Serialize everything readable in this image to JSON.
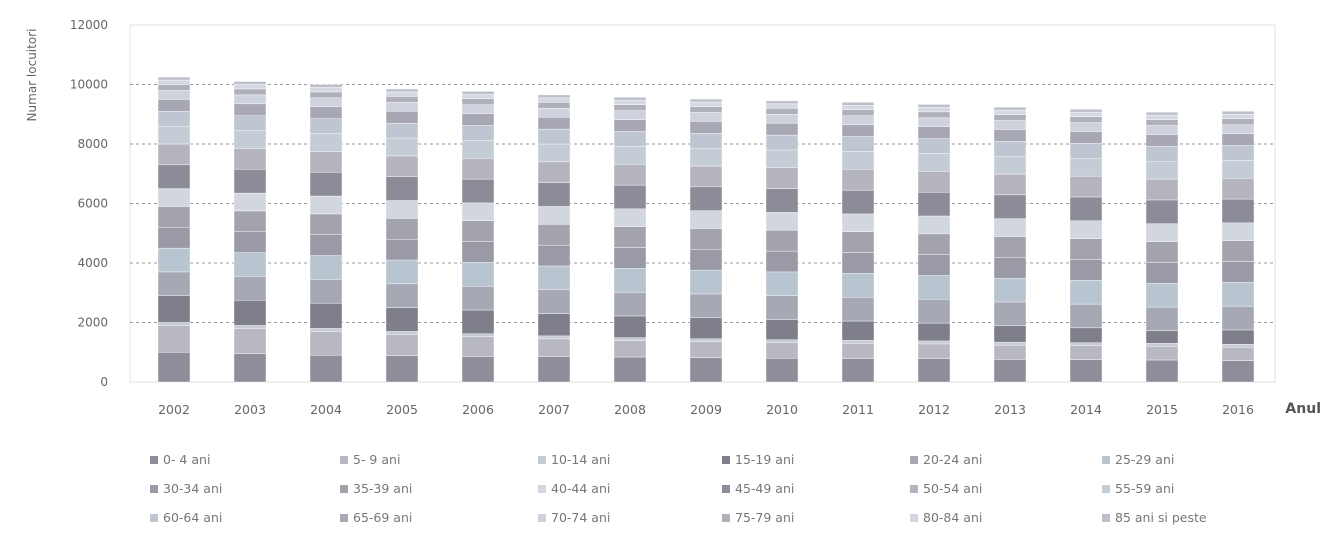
{
  "chart_data": {
    "type": "bar",
    "stacked": true,
    "ylabel": "Numar locuitori",
    "xlabel": "Anul",
    "ylim": [
      0,
      12000
    ],
    "yticks": [
      0,
      2000,
      4000,
      6000,
      8000,
      10000,
      12000
    ],
    "grid": true,
    "legend_position": "bottom",
    "categories": [
      "2002",
      "2003",
      "2004",
      "2005",
      "2006",
      "2007",
      "2008",
      "2009",
      "2010",
      "2011",
      "2012",
      "2013",
      "2014",
      "2015",
      "2016"
    ],
    "series": [
      {
        "name": "0- 4 ani",
        "color": "#8e8e9a",
        "values": [
          1000,
          950,
          900,
          880,
          860,
          850,
          840,
          820,
          800,
          790,
          780,
          760,
          750,
          740,
          720
        ]
      },
      {
        "name": "5- 9 ani",
        "color": "#b8b8c2",
        "values": [
          900,
          850,
          800,
          720,
          660,
          600,
          550,
          530,
          520,
          510,
          500,
          480,
          470,
          460,
          450
        ]
      },
      {
        "name": "10-14 ani",
        "color": "#c6cbd4",
        "values": [
          100,
          100,
          100,
          100,
          100,
          100,
          100,
          100,
          100,
          100,
          100,
          100,
          100,
          100,
          100
        ]
      },
      {
        "name": "15-19 ani",
        "color": "#7f7f8b",
        "values": [
          900,
          850,
          850,
          800,
          800,
          750,
          730,
          710,
          680,
          650,
          600,
          550,
          500,
          420,
          480
        ]
      },
      {
        "name": "20-24 ani",
        "color": "#a6a9b4",
        "values": [
          800,
          800,
          800,
          800,
          800,
          800,
          800,
          800,
          800,
          800,
          800,
          800,
          800,
          800,
          800
        ]
      },
      {
        "name": "25-29 ani",
        "color": "#b8c4cf",
        "values": [
          800,
          800,
          800,
          800,
          800,
          800,
          800,
          800,
          800,
          800,
          800,
          800,
          800,
          800,
          800
        ]
      },
      {
        "name": "30-34 ani",
        "color": "#9a9aa6",
        "values": [
          700,
          700,
          700,
          700,
          700,
          700,
          700,
          700,
          700,
          700,
          700,
          700,
          700,
          700,
          700
        ]
      },
      {
        "name": "35-39 ani",
        "color": "#a3a3ad",
        "values": [
          700,
          700,
          700,
          700,
          700,
          700,
          700,
          700,
          700,
          700,
          700,
          700,
          700,
          700,
          700
        ]
      },
      {
        "name": "40-44 ani",
        "color": "#d2d6de",
        "values": [
          600,
          600,
          600,
          600,
          600,
          600,
          600,
          600,
          600,
          600,
          600,
          600,
          600,
          600,
          600
        ]
      },
      {
        "name": "45-49 ani",
        "color": "#8c8c98",
        "values": [
          800,
          800,
          800,
          800,
          800,
          800,
          800,
          800,
          800,
          800,
          800,
          800,
          800,
          800,
          800
        ]
      },
      {
        "name": "50-54 ani",
        "color": "#b4b4be",
        "values": [
          700,
          700,
          700,
          700,
          700,
          700,
          700,
          700,
          700,
          700,
          700,
          700,
          700,
          700,
          700
        ]
      },
      {
        "name": "55-59 ani",
        "color": "#c4ccd6",
        "values": [
          600,
          600,
          600,
          600,
          600,
          600,
          600,
          600,
          600,
          600,
          600,
          600,
          600,
          600,
          600
        ]
      },
      {
        "name": "60-64 ani",
        "color": "#bfc6d2",
        "values": [
          500,
          500,
          500,
          500,
          500,
          500,
          500,
          500,
          500,
          500,
          500,
          500,
          500,
          500,
          500
        ]
      },
      {
        "name": "65-69 ani",
        "color": "#a8a8b4",
        "values": [
          400,
          400,
          400,
          400,
          400,
          400,
          400,
          400,
          400,
          400,
          400,
          400,
          400,
          400,
          400
        ]
      },
      {
        "name": "70-74 ani",
        "color": "#cdd2dc",
        "values": [
          300,
          300,
          300,
          300,
          300,
          300,
          300,
          300,
          300,
          300,
          300,
          300,
          300,
          300,
          300
        ]
      },
      {
        "name": "75-79 ani",
        "color": "#b0b0bb",
        "values": [
          200,
          200,
          200,
          200,
          200,
          200,
          200,
          200,
          200,
          200,
          200,
          200,
          200,
          200,
          200
        ]
      },
      {
        "name": "80-84 ani",
        "color": "#d4d9e1",
        "values": [
          150,
          150,
          150,
          150,
          150,
          150,
          150,
          150,
          150,
          150,
          150,
          150,
          150,
          150,
          150
        ]
      },
      {
        "name": "85 ani si peste",
        "color": "#bcc0ca",
        "values": [
          100,
          100,
          100,
          100,
          100,
          100,
          100,
          100,
          100,
          100,
          100,
          100,
          100,
          100,
          100
        ]
      }
    ]
  }
}
